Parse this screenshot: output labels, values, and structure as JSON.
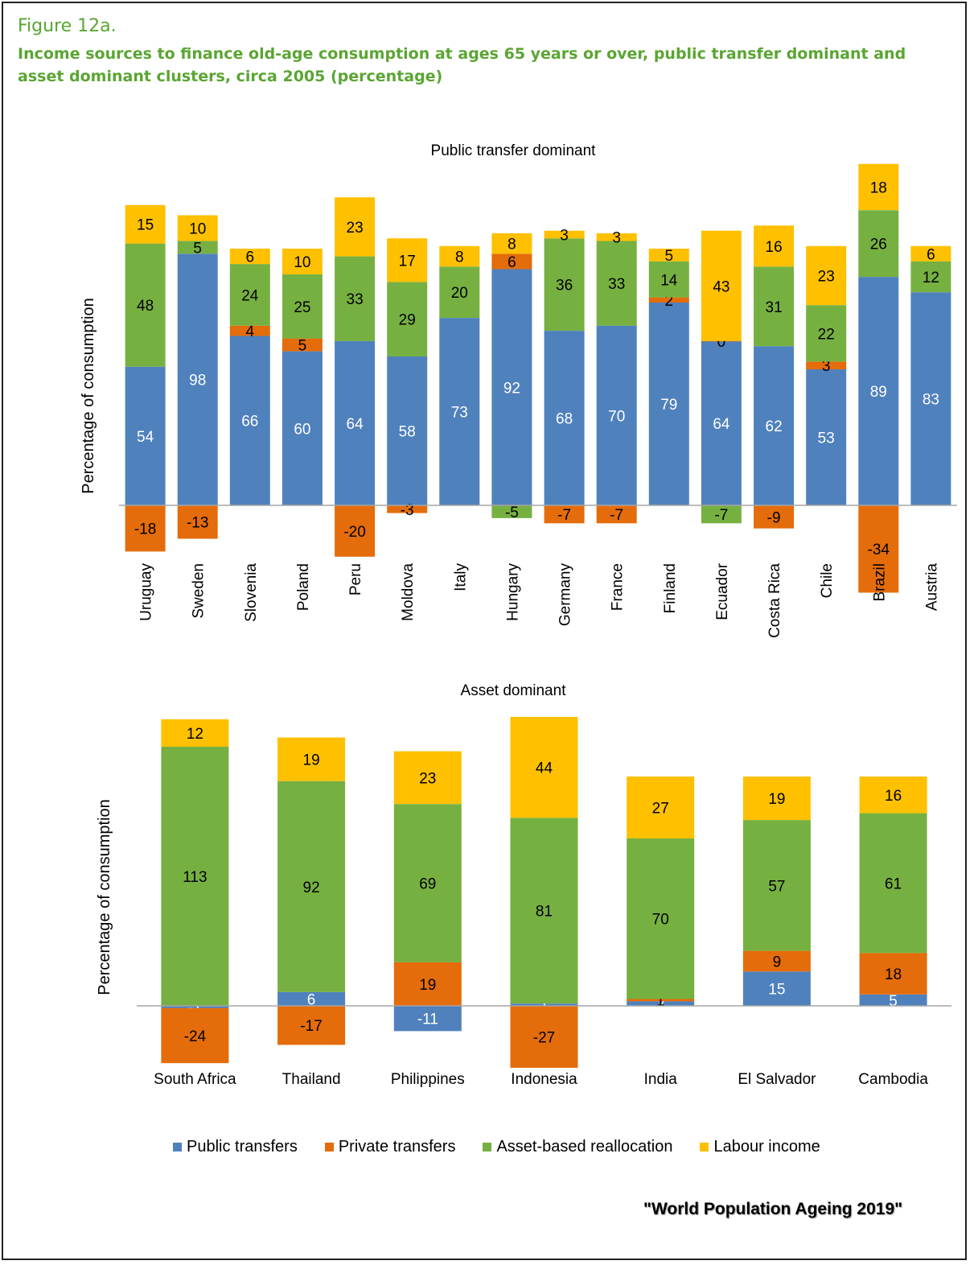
{
  "figure_label": "Figure 12a.",
  "figure_title": "Income sources to finance old-age consumption at ages 65 years or over, public transfer dominant and asset dominant clusters, circa 2005 (percentage)",
  "source_note": "\"World Population Ageing 2019\"",
  "colors": {
    "public": "#4f81bd",
    "private": "#e46c0a",
    "asset": "#76b041",
    "labour": "#ffc000"
  },
  "legend": [
    {
      "key": "public",
      "label": "Public transfers"
    },
    {
      "key": "private",
      "label": "Private transfers"
    },
    {
      "key": "asset",
      "label": "Asset-based reallocation"
    },
    {
      "key": "labour",
      "label": "Labour income"
    }
  ],
  "chart_data": [
    {
      "type": "bar",
      "stacked": true,
      "title": "Public transfer dominant",
      "ylabel": "Percentage of consumption",
      "categories": [
        "Uruguay",
        "Sweden",
        "Slovenia",
        "Poland",
        "Peru",
        "Moldova",
        "Italy",
        "Hungary",
        "Germany",
        "France",
        "Finland",
        "Ecuador",
        "Costa Rica",
        "Chile",
        "Brazil",
        "Austria"
      ],
      "series": [
        {
          "name": "Public transfers",
          "key": "public",
          "values": [
            54,
            98,
            66,
            60,
            64,
            58,
            73,
            92,
            68,
            70,
            79,
            64,
            62,
            53,
            89,
            83
          ]
        },
        {
          "name": "Private transfers",
          "key": "private",
          "values": [
            -18,
            -13,
            4,
            5,
            -20,
            -3,
            null,
            6,
            -7,
            -7,
            2,
            0,
            -9,
            3,
            -34,
            null
          ]
        },
        {
          "name": "Asset-based reallocation",
          "key": "asset",
          "values": [
            48,
            5,
            24,
            25,
            33,
            29,
            20,
            -5,
            36,
            33,
            14,
            -7,
            31,
            22,
            26,
            12
          ]
        },
        {
          "name": "Labour income",
          "key": "labour",
          "values": [
            15,
            10,
            6,
            10,
            23,
            17,
            8,
            8,
            3,
            3,
            5,
            43,
            16,
            23,
            18,
            6
          ]
        }
      ]
    },
    {
      "type": "bar",
      "stacked": true,
      "title": "Asset dominant",
      "ylabel": "Percentage of consumption",
      "categories": [
        "South Africa",
        "Thailand",
        "Philippines",
        "Indonesia",
        "India",
        "El Salvador",
        "Cambodia"
      ],
      "series": [
        {
          "name": "Public transfers",
          "key": "public",
          "values": [
            -1,
            6,
            -11,
            1,
            2,
            15,
            5
          ]
        },
        {
          "name": "Private transfers",
          "key": "private",
          "values": [
            -24,
            -17,
            19,
            -27,
            1,
            9,
            18
          ]
        },
        {
          "name": "Asset-based reallocation",
          "key": "asset",
          "values": [
            113,
            92,
            69,
            81,
            70,
            57,
            61
          ]
        },
        {
          "name": "Labour income",
          "key": "labour",
          "values": [
            12,
            19,
            23,
            44,
            27,
            19,
            16
          ]
        }
      ]
    }
  ]
}
